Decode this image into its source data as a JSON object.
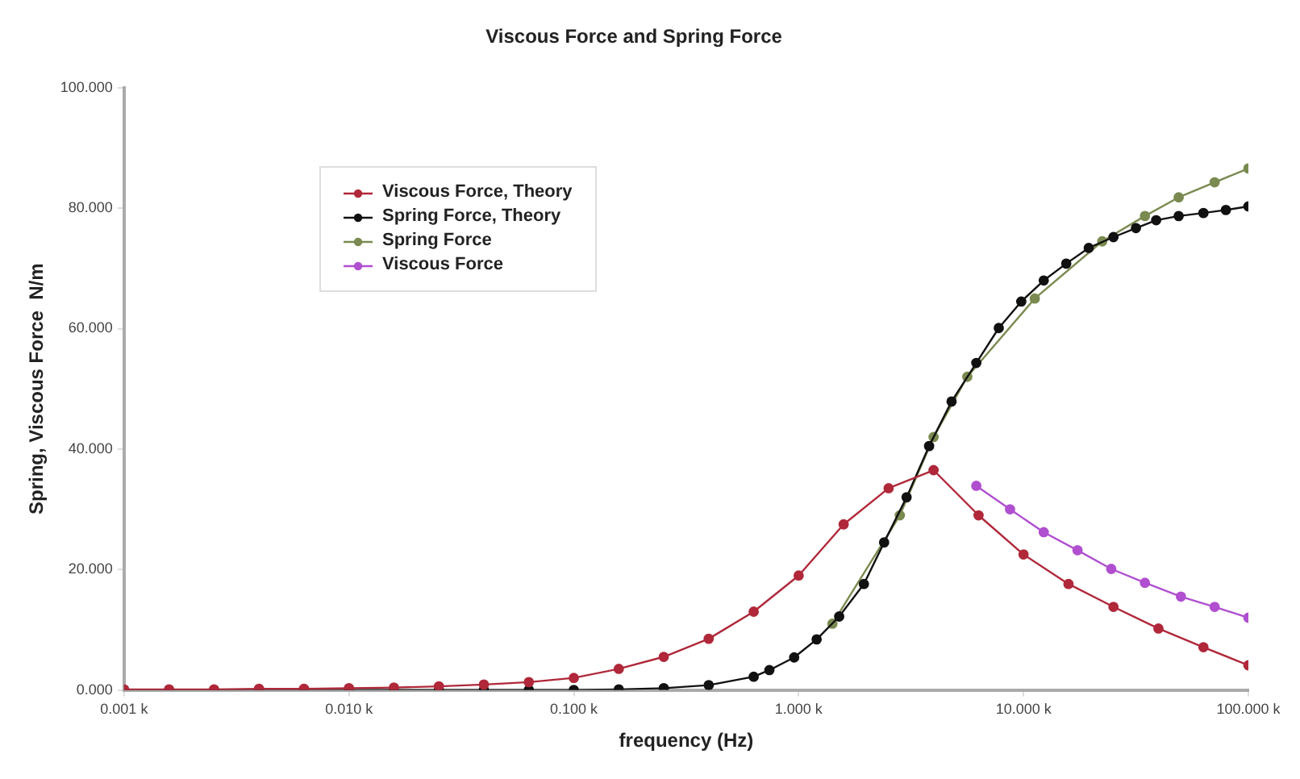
{
  "chart_data": {
    "type": "line",
    "title": "Viscous Force and Spring Force",
    "xlabel": "frequency (Hz)",
    "ylabel": "Spring, Viscous Force  N/m",
    "log": "x",
    "grid": false,
    "legend": "top left",
    "marker": "circle",
    "line_style": "solid",
    "xlim": [
      1,
      100000
    ],
    "xticks": [
      {
        "value": 1,
        "label": "0.001 k"
      },
      {
        "value": 10,
        "label": "0.010 k"
      },
      {
        "value": 100,
        "label": "0.100 k"
      },
      {
        "value": 1000,
        "label": "1.000 k"
      },
      {
        "value": 10000,
        "label": "10.000 k"
      },
      {
        "value": 100000,
        "label": "100.000 k"
      }
    ],
    "ylim": [
      0,
      100
    ],
    "yticks": [
      {
        "value": 0,
        "label": "0.000"
      },
      {
        "value": 20,
        "label": "20.000"
      },
      {
        "value": 40,
        "label": "40.000"
      },
      {
        "value": 60,
        "label": "60.000"
      },
      {
        "value": 80,
        "label": "80.000"
      },
      {
        "value": 100,
        "label": "100.000"
      }
    ],
    "series": [
      {
        "name": "Viscous Force, Theory",
        "color": "#b0283a",
        "x": [
          1,
          1.585,
          2.512,
          3.981,
          6.31,
          10,
          15.85,
          25.12,
          39.81,
          63.1,
          100,
          158.5,
          251.2,
          398.1,
          631,
          1000,
          1585,
          2512,
          3981,
          6310,
          10000,
          15850,
          25120,
          39810,
          63100,
          100000
        ],
        "values": [
          0.1,
          0.1,
          0.1,
          0.2,
          0.2,
          0.3,
          0.4,
          0.6,
          0.9,
          1.3,
          2,
          3.5,
          5.5,
          8.5,
          13,
          19,
          27.5,
          33.5,
          36.5,
          29,
          22.5,
          17.6,
          13.8,
          10.2,
          7.1,
          4.1
        ]
      },
      {
        "name": "Spring Force, Theory",
        "color": "#111111",
        "x": [
          1,
          1.585,
          2.512,
          3.981,
          6.31,
          10,
          15.85,
          25.12,
          39.81,
          63.1,
          100,
          158.5,
          251.2,
          398.1,
          631,
          741,
          955,
          1202,
          1514,
          1950,
          2399,
          3020,
          3802,
          4786,
          6166,
          7762,
          9772,
          12300,
          15490,
          19500,
          25120,
          31620,
          38900,
          48980,
          63100,
          79430,
          100000
        ],
        "values": [
          0,
          0,
          0,
          0,
          0,
          0,
          0,
          0,
          0,
          0,
          0,
          0.1,
          0.3,
          0.8,
          2.2,
          3.3,
          5.4,
          8.4,
          12.2,
          17.6,
          24.5,
          32,
          40.5,
          47.9,
          54.3,
          60.1,
          64.5,
          68,
          70.8,
          73.4,
          75.2,
          76.7,
          78,
          78.7,
          79.2,
          79.7,
          80.3
        ]
      },
      {
        "name": "Spring Force",
        "color": "#7a8a50",
        "x": [
          1413,
          1995,
          2818,
          3981,
          5623,
          7943,
          11220,
          15850,
          22390,
          34670,
          48980,
          70790,
          100000
        ],
        "values": [
          11,
          null,
          29,
          42,
          52,
          null,
          65,
          null,
          74.5,
          78.7,
          81.8,
          84.3,
          86.6
        ]
      },
      {
        "name": "Viscous Force",
        "color": "#b04fd0",
        "x": [
          6166,
          8710,
          12300,
          17380,
          24550,
          34670,
          50120,
          70790,
          100000
        ],
        "values": [
          33.9,
          30,
          26.2,
          23.2,
          20.1,
          17.8,
          15.5,
          13.8,
          12
        ]
      }
    ]
  }
}
